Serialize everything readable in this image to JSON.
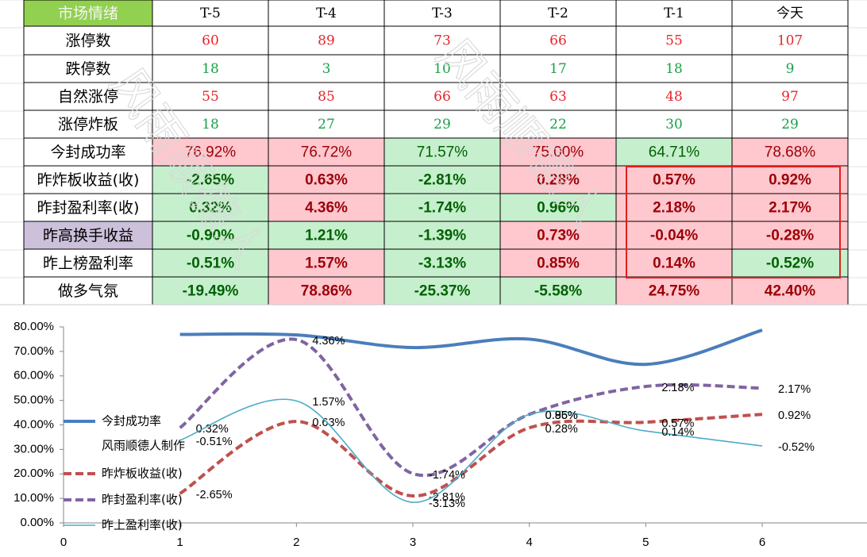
{
  "table": {
    "header": [
      "市场情绪",
      "T-5",
      "T-4",
      "T-3",
      "T-2",
      "T-1",
      "今天"
    ],
    "rows": [
      [
        "涨停数",
        "60",
        "89",
        "73",
        "66",
        "55",
        "107"
      ],
      [
        "跌停数",
        "18",
        "3",
        "10",
        "17",
        "18",
        "9"
      ],
      [
        "自然涨停",
        "55",
        "85",
        "66",
        "63",
        "48",
        "97"
      ],
      [
        "涨停炸板",
        "18",
        "27",
        "29",
        "22",
        "30",
        "29"
      ],
      [
        "今封成功率",
        "76.92%",
        "76.72%",
        "71.57%",
        "75.00%",
        "64.71%",
        "78.68%"
      ],
      [
        "昨炸板收益(收)",
        "-2.65%",
        "0.63%",
        "-2.81%",
        "0.28%",
        "0.57%",
        "0.92%"
      ],
      [
        "昨封盈利率(收)",
        "0.32%",
        "4.36%",
        "-1.74%",
        "0.96%",
        "2.18%",
        "2.17%"
      ],
      [
        "昨高换手收益",
        "-0.90%",
        "1.21%",
        "-1.39%",
        "0.73%",
        "-0.04%",
        "-0.28%"
      ],
      [
        "昨上榜盈利率",
        "-0.51%",
        "1.57%",
        "-3.13%",
        "0.85%",
        "0.14%",
        "-0.52%"
      ],
      [
        "做多气氛",
        "-19.49%",
        "78.86%",
        "-25.37%",
        "-5.58%",
        "24.75%",
        "42.40%"
      ]
    ],
    "header_fills": [
      "#92d050",
      "#ffffff",
      "#ffffff",
      "#ffffff",
      "#ffffff",
      "#ffffff",
      "#ffffff"
    ],
    "fills": [
      [
        "#ffffff",
        "#ffffff",
        "#ffffff",
        "#ffffff",
        "#ffffff",
        "#ffffff",
        "#ffffff"
      ],
      [
        "#ffffff",
        "#ffffff",
        "#ffffff",
        "#ffffff",
        "#ffffff",
        "#ffffff",
        "#ffffff"
      ],
      [
        "#ffffff",
        "#ffffff",
        "#ffffff",
        "#ffffff",
        "#ffffff",
        "#ffffff",
        "#ffffff"
      ],
      [
        "#ffffff",
        "#ffffff",
        "#ffffff",
        "#ffffff",
        "#ffffff",
        "#ffffff",
        "#ffffff"
      ],
      [
        "#ffffff",
        "#ffc7ce",
        "#ffc7ce",
        "#c6efce",
        "#ffc7ce",
        "#c6efce",
        "#ffc7ce"
      ],
      [
        "#ffffff",
        "#c6efce",
        "#ffc7ce",
        "#c6efce",
        "#ffc7ce",
        "#ffc7ce",
        "#ffc7ce"
      ],
      [
        "#ffffff",
        "#c6efce",
        "#ffc7ce",
        "#c6efce",
        "#c6efce",
        "#ffc7ce",
        "#ffc7ce"
      ],
      [
        "#ccc0da",
        "#c6efce",
        "#c6efce",
        "#c6efce",
        "#ffc7ce",
        "#ffc7ce",
        "#ffc7ce"
      ],
      [
        "#ffffff",
        "#c6efce",
        "#ffc7ce",
        "#c6efce",
        "#ffc7ce",
        "#ffc7ce",
        "#c6efce"
      ],
      [
        "#ffffff",
        "#c6efce",
        "#ffc7ce",
        "#c6efce",
        "#c6efce",
        "#ffc7ce",
        "#ffc7ce"
      ]
    ],
    "text_colors": [
      [
        "#000000",
        "#e8262b",
        "#e8262b",
        "#e8262b",
        "#e8262b",
        "#e8262b",
        "#e8262b"
      ],
      [
        "#000000",
        "#1aa04a",
        "#1aa04a",
        "#1aa04a",
        "#1aa04a",
        "#1aa04a",
        "#1aa04a"
      ],
      [
        "#000000",
        "#e8262b",
        "#e8262b",
        "#e8262b",
        "#e8262b",
        "#e8262b",
        "#e8262b"
      ],
      [
        "#000000",
        "#1aa04a",
        "#1aa04a",
        "#1aa04a",
        "#1aa04a",
        "#1aa04a",
        "#1aa04a"
      ],
      [
        "#000000",
        "#9c0006",
        "#9c0006",
        "#006100",
        "#9c0006",
        "#006100",
        "#9c0006"
      ],
      [
        "#000000",
        "#006100",
        "#9c0006",
        "#006100",
        "#9c0006",
        "#9c0006",
        "#9c0006"
      ],
      [
        "#000000",
        "#006100",
        "#9c0006",
        "#006100",
        "#006100",
        "#9c0006",
        "#9c0006"
      ],
      [
        "#000000",
        "#006100",
        "#006100",
        "#006100",
        "#9c0006",
        "#9c0006",
        "#9c0006"
      ],
      [
        "#000000",
        "#006100",
        "#9c0006",
        "#006100",
        "#9c0006",
        "#9c0006",
        "#006100"
      ],
      [
        "#000000",
        "#006100",
        "#9c0006",
        "#006100",
        "#006100",
        "#9c0006",
        "#9c0006"
      ]
    ],
    "bold_rows": [
      5,
      6,
      7,
      8,
      9
    ]
  },
  "watermark": "风雨顺德人",
  "chart_data": {
    "type": "line",
    "x": [
      1,
      2,
      3,
      4,
      5,
      6
    ],
    "xlim": [
      0,
      6.9
    ],
    "xticks": [
      0,
      1,
      2,
      3,
      4,
      5,
      6
    ],
    "ylim": [
      0,
      80
    ],
    "yticks": [
      {
        "value": 0,
        "label": "0.00%"
      },
      {
        "value": 10,
        "label": "10.00%"
      },
      {
        "value": 20,
        "label": "20.00%"
      },
      {
        "value": 30,
        "label": "30.00%"
      },
      {
        "value": 40,
        "label": "40.00%"
      },
      {
        "value": 50,
        "label": "50.00%"
      },
      {
        "value": 60,
        "label": "60.00%"
      },
      {
        "value": 70,
        "label": "70.00%"
      },
      {
        "value": 80,
        "label": "80.00%"
      }
    ],
    "smooth": true,
    "legend": "left",
    "series": [
      {
        "name": "今封成功率",
        "color": "#4a7ebb",
        "style": "thick",
        "values": [
          76.92,
          76.72,
          71.57,
          75.0,
          64.71,
          78.68
        ]
      },
      {
        "name": "风雨顺德人制作",
        "color": "none",
        "style": "none",
        "values": [
          null,
          null,
          null,
          null,
          null,
          null
        ]
      },
      {
        "name": "昨炸板收益(收)",
        "color": "#c0504d",
        "style": "dashed",
        "values": [
          12.0,
          41.4,
          11.0,
          38.8,
          41.1,
          44.3
        ],
        "point_labels": [
          "-2.65%",
          "0.63%",
          "-2.81%",
          "0.28%",
          "0.57%",
          "0.92%"
        ]
      },
      {
        "name": "昨封盈利率(收)",
        "color": "#8064a2",
        "style": "dashed",
        "values": [
          38.8,
          74.8,
          20.1,
          44.3,
          55.7,
          55.0
        ],
        "point_labels": [
          "0.32%",
          "4.36%",
          "-1.74%",
          "0.96%",
          "2.18%",
          "2.17%"
        ]
      },
      {
        "name": "昨上盈利率(收)",
        "color": "#4bacc6",
        "style": "thin",
        "values": [
          33.7,
          49.8,
          8.4,
          44.3,
          37.5,
          31.4
        ],
        "point_labels": [
          "-0.51%",
          "1.57%",
          "-3.13%",
          "0.85%",
          "0.14%",
          "-0.52%"
        ]
      }
    ]
  }
}
